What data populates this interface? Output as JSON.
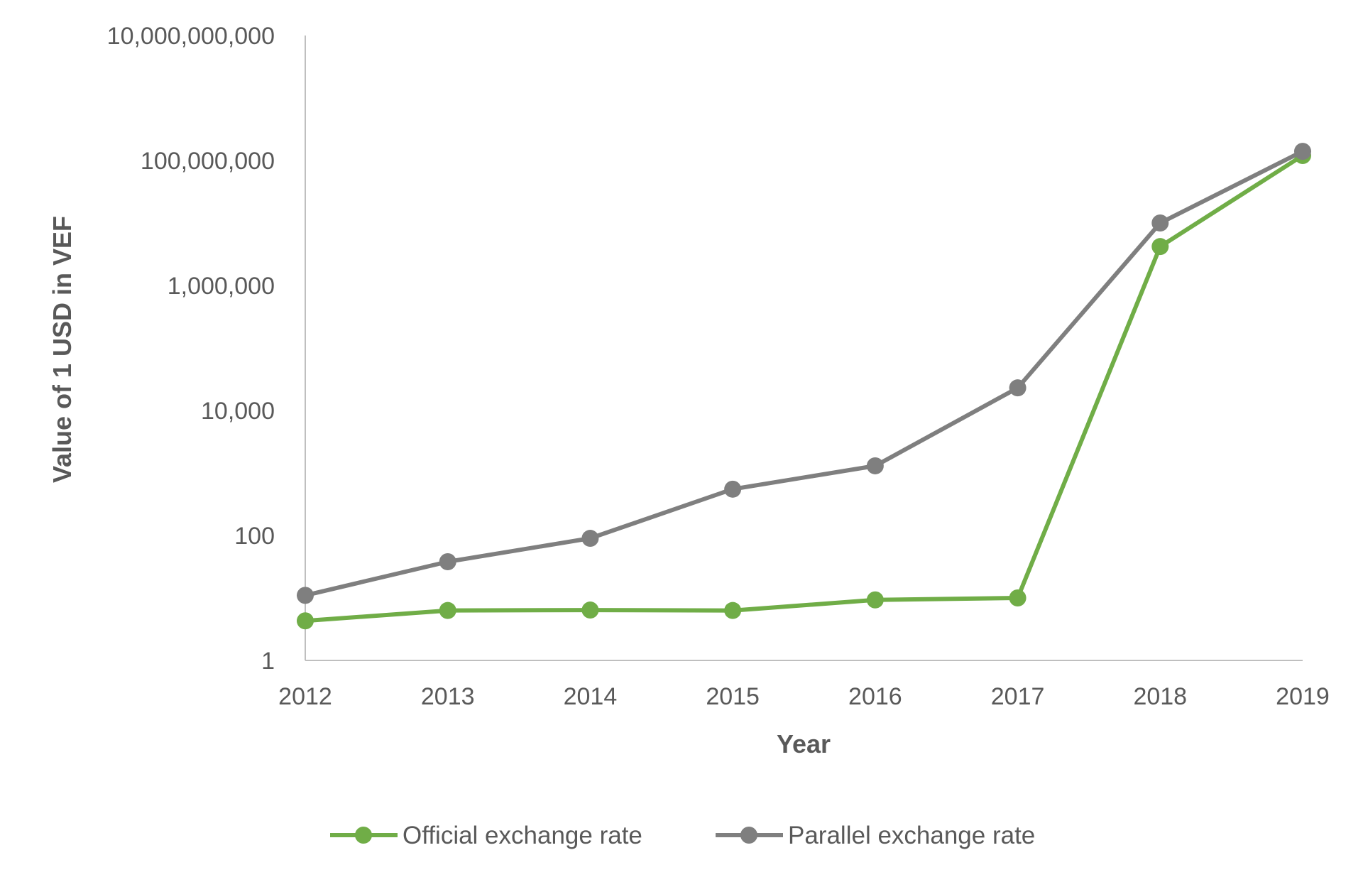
{
  "chart_data": {
    "type": "line",
    "title": "",
    "xlabel": "Year",
    "ylabel": "Value of 1 USD in VEF",
    "y_scale": "log",
    "ylim": [
      1,
      10000000000
    ],
    "categories": [
      "2012",
      "2013",
      "2014",
      "2015",
      "2016",
      "2017",
      "2018",
      "2019"
    ],
    "y_tick_labels": [
      "1",
      "100",
      "10,000",
      "1,000,000",
      "100,000,000",
      "10,000,000,000"
    ],
    "y_tick_values": [
      1,
      100,
      10000,
      1000000,
      100000000,
      10000000000
    ],
    "grid": false,
    "legend_position": "bottom",
    "series": [
      {
        "name": "Official exchange rate",
        "color": "#70ad47",
        "values": [
          4.3,
          6.3,
          6.4,
          6.3,
          9.3,
          10,
          4200000,
          120000000
        ]
      },
      {
        "name": "Parallel exchange rate",
        "color": "#7f7f7f",
        "values": [
          11,
          38,
          90,
          550,
          1300,
          23000,
          10000000,
          140000000
        ]
      }
    ]
  },
  "colors": {
    "axis": "#bfbfbf",
    "text": "#595959",
    "title_text": "#595959"
  }
}
